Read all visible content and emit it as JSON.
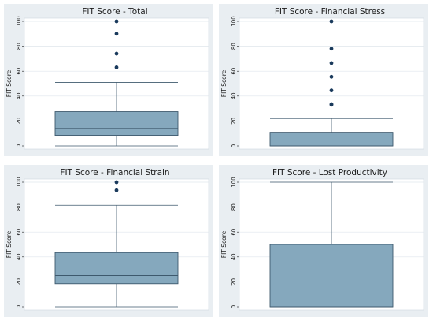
{
  "figure": {
    "colors": {
      "panel_bg": "#e9eef2",
      "plot_bg": "#ffffff",
      "box_fill": "#85a8bd",
      "box_stroke": "#3e596d",
      "outlier": "#1a3a5c",
      "grid": "#dfe6ec",
      "text": "#1a1a1a"
    }
  },
  "chart_data": [
    {
      "type": "box",
      "title": "FIT Score - Total",
      "ylabel": "FIT Score",
      "ylim": [
        0,
        100
      ],
      "yticks": [
        "0",
        "20",
        "40",
        "60",
        "80",
        "100"
      ],
      "grid": true,
      "box": {
        "min": 0,
        "q1": 8.5,
        "median": 14,
        "q3": 27.5,
        "max": 51
      },
      "outliers": [
        63,
        74,
        90,
        100
      ]
    },
    {
      "type": "box",
      "title": "FIT Score - Financial Stress",
      "ylabel": "FIT Score",
      "ylim": [
        0,
        100
      ],
      "yticks": [
        "0",
        "20",
        "40",
        "60",
        "80",
        "100"
      ],
      "grid": true,
      "box": {
        "min": 0,
        "q1": 0,
        "median": 0,
        "q3": 11,
        "max": 22
      },
      "outliers": [
        33,
        33.5,
        44.5,
        55.5,
        66.5,
        78,
        100
      ]
    },
    {
      "type": "box",
      "title": "FIT Score - Financial Strain",
      "ylabel": "FIT Score",
      "ylim": [
        0,
        100
      ],
      "yticks": [
        "0",
        "20",
        "40",
        "60",
        "80",
        "100"
      ],
      "grid": true,
      "box": {
        "min": 0,
        "q1": 18.5,
        "median": 25,
        "q3": 43.5,
        "max": 81.5
      },
      "outliers": [
        93.5,
        100
      ]
    },
    {
      "type": "box",
      "title": "FIT Score - Lost Productivity",
      "ylabel": "FIT Score",
      "ylim": [
        0,
        100
      ],
      "yticks": [
        "0",
        "20",
        "40",
        "60",
        "80",
        "100"
      ],
      "grid": true,
      "box": {
        "min": 0,
        "q1": 0,
        "median": 0,
        "q3": 50,
        "max": 100
      },
      "outliers": []
    }
  ]
}
